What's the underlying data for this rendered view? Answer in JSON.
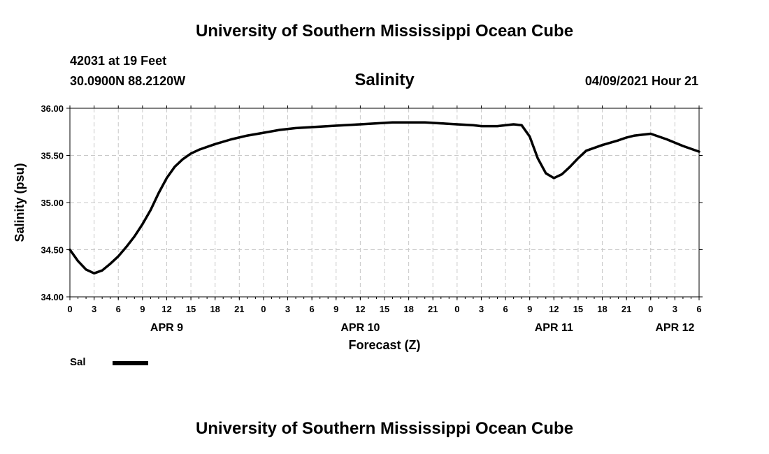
{
  "header": {
    "title": "University of Southern Mississippi Ocean Cube",
    "station": "42031 at 19 Feet",
    "coordinates": "30.0900N  88.2120W",
    "valid_time": "04/09/2021 Hour 21"
  },
  "footer": {
    "title": "University of Southern Mississippi Ocean Cube"
  },
  "legend": {
    "label": "Sal",
    "color": "#000000"
  },
  "chart_data": {
    "type": "line",
    "title": "Salinity",
    "xlabel": "Forecast (Z)",
    "ylabel": "Salinity (psu)",
    "xlim": [
      0,
      78
    ],
    "ylim": [
      34.0,
      36.0
    ],
    "grid": true,
    "y_ticks": [
      "34.00",
      "34.50",
      "35.00",
      "35.50",
      "36.00"
    ],
    "x_ticks": [
      "0",
      "3",
      "6",
      "9",
      "12",
      "15",
      "18",
      "21",
      "0",
      "3",
      "6",
      "9",
      "12",
      "15",
      "18",
      "21",
      "0",
      "3",
      "6",
      "9",
      "12",
      "15",
      "18",
      "21",
      "0",
      "3",
      "6"
    ],
    "day_labels": [
      {
        "hour": 12,
        "label": "APR 9"
      },
      {
        "hour": 36,
        "label": "APR 10"
      },
      {
        "hour": 60,
        "label": "APR 11"
      },
      {
        "hour": 75,
        "label": "APR 12"
      }
    ],
    "series": [
      {
        "name": "Sal",
        "x": [
          0,
          1,
          2,
          3,
          4,
          5,
          6,
          7,
          8,
          9,
          10,
          11,
          12,
          13,
          14,
          15,
          16,
          18,
          20,
          22,
          24,
          26,
          28,
          30,
          32,
          34,
          36,
          38,
          40,
          42,
          44,
          46,
          48,
          50,
          51,
          52,
          53,
          54,
          55,
          56,
          57,
          58,
          59,
          60,
          61,
          62,
          63,
          64,
          66,
          68,
          69,
          70,
          72,
          74,
          76,
          78
        ],
        "y": [
          34.5,
          34.38,
          34.29,
          34.25,
          34.28,
          34.35,
          34.43,
          34.53,
          34.64,
          34.77,
          34.92,
          35.1,
          35.26,
          35.38,
          35.46,
          35.52,
          35.56,
          35.62,
          35.67,
          35.71,
          35.74,
          35.77,
          35.79,
          35.8,
          35.81,
          35.82,
          35.83,
          35.84,
          35.85,
          35.85,
          35.85,
          35.84,
          35.83,
          35.82,
          35.81,
          35.81,
          35.81,
          35.82,
          35.83,
          35.82,
          35.7,
          35.47,
          35.31,
          35.26,
          35.3,
          35.38,
          35.47,
          35.55,
          35.61,
          35.66,
          35.69,
          35.71,
          35.73,
          35.67,
          35.6,
          35.54
        ]
      }
    ]
  }
}
